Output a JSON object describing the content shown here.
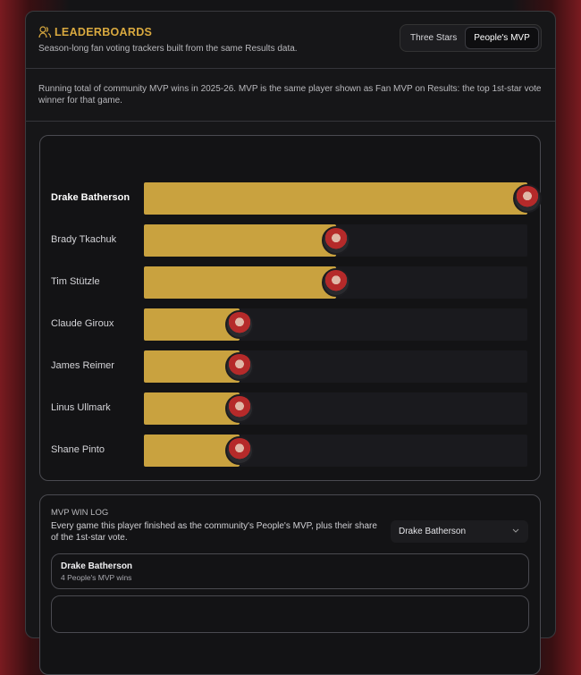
{
  "header": {
    "title": "LEADERBOARDS",
    "subtitle": "Season-long fan voting trackers built from the same Results data.",
    "tabs": [
      "Three Stars",
      "People's MVP"
    ]
  },
  "description": "Running total of community MVP wins in 2025-26. MVP is the same player shown as Fan MVP on Results: the top 1st-star vote winner for that game.",
  "chart_data": {
    "type": "bar",
    "orientation": "horizontal",
    "categories": [
      "Drake Batherson",
      "Brady Tkachuk",
      "Tim Stützle",
      "Claude Giroux",
      "James Reimer",
      "Linus Ullmark",
      "Shane Pinto"
    ],
    "values": [
      4,
      2,
      2,
      1,
      1,
      1,
      1
    ],
    "color": "#c9a23f"
  },
  "win_log": {
    "title": "MVP WIN LOG",
    "text": "Every game this player finished as the community's People's MVP, plus their share of the 1st-star vote.",
    "select": "Drake Batherson",
    "entry": {
      "name": "Drake Batherson",
      "detail": "4 People's MVP wins"
    }
  }
}
